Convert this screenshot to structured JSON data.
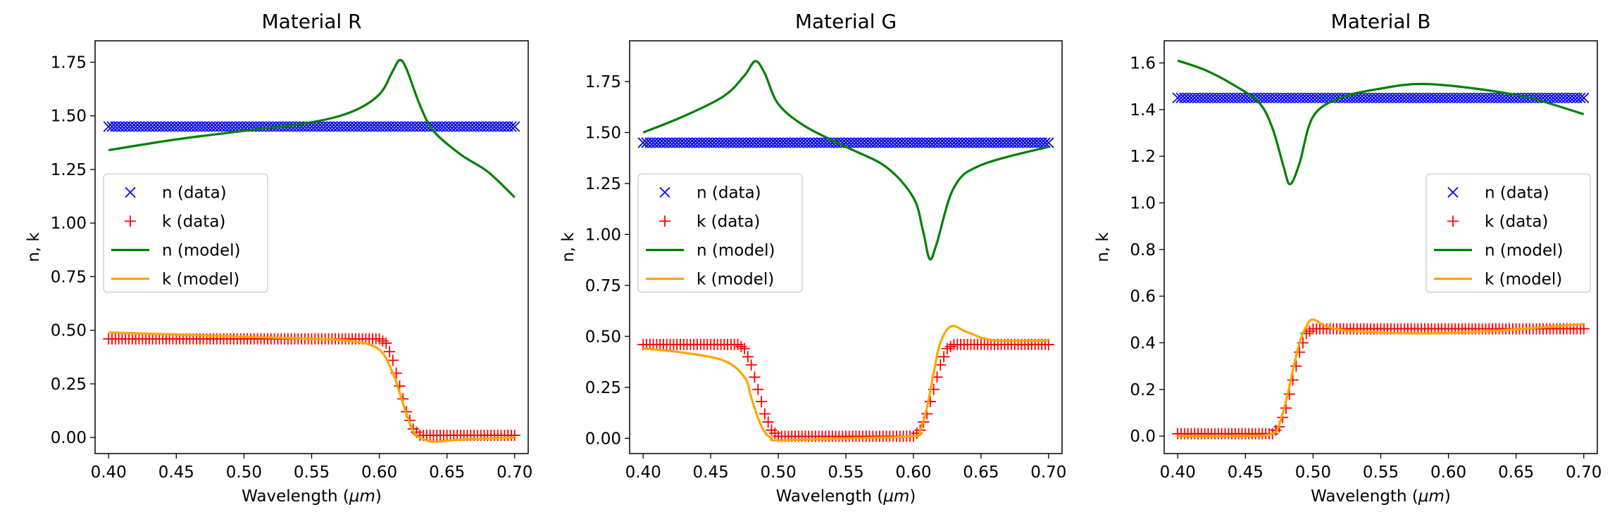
{
  "chart_data": [
    {
      "type": "line",
      "title": "Material R",
      "xlabel": "Wavelength ($\\mu m$)",
      "ylabel": "n, k",
      "xlim": [
        0.39,
        0.71
      ],
      "ylim": [
        -0.075,
        1.85
      ],
      "xticks": [
        0.4,
        0.45,
        0.5,
        0.55,
        0.6,
        0.65,
        0.7
      ],
      "yticks": [
        0.0,
        0.25,
        0.5,
        0.75,
        1.0,
        1.25,
        1.5,
        1.75
      ],
      "legend_position": "center-left",
      "series": [
        {
          "name": "n (data)",
          "style": "x-marker",
          "color": "#0000ff",
          "x": [
            0.4,
            0.7
          ],
          "y": [
            1.45,
            1.45
          ]
        },
        {
          "name": "k (data)",
          "style": "plus-marker",
          "color": "#ff0000",
          "x": [
            0.4,
            0.6,
            0.605,
            0.61,
            0.615,
            0.62,
            0.625,
            0.63,
            0.7
          ],
          "y": [
            0.46,
            0.46,
            0.44,
            0.36,
            0.24,
            0.12,
            0.04,
            0.01,
            0.01
          ]
        },
        {
          "name": "n (model)",
          "style": "line",
          "color": "#008000",
          "x": [
            0.4,
            0.45,
            0.5,
            0.55,
            0.58,
            0.6,
            0.61,
            0.615,
            0.62,
            0.63,
            0.64,
            0.66,
            0.68,
            0.7
          ],
          "y": [
            1.34,
            1.39,
            1.43,
            1.47,
            1.52,
            1.6,
            1.71,
            1.76,
            1.72,
            1.55,
            1.43,
            1.32,
            1.24,
            1.12
          ]
        },
        {
          "name": "k (model)",
          "style": "line",
          "color": "#ffa500",
          "x": [
            0.4,
            0.45,
            0.5,
            0.55,
            0.58,
            0.6,
            0.61,
            0.615,
            0.62,
            0.625,
            0.63,
            0.64,
            0.66,
            0.7
          ],
          "y": [
            0.49,
            0.48,
            0.47,
            0.46,
            0.45,
            0.41,
            0.3,
            0.21,
            0.11,
            0.03,
            0.0,
            -0.02,
            -0.01,
            0.0
          ]
        }
      ]
    },
    {
      "type": "line",
      "title": "Material G",
      "xlabel": "Wavelength ($\\mu m$)",
      "ylabel": "n, k",
      "xlim": [
        0.39,
        0.71
      ],
      "ylim": [
        -0.075,
        1.95
      ],
      "xticks": [
        0.4,
        0.45,
        0.5,
        0.55,
        0.6,
        0.65,
        0.7
      ],
      "yticks": [
        0.0,
        0.25,
        0.5,
        0.75,
        1.0,
        1.25,
        1.5,
        1.75
      ],
      "legend_position": "center-left",
      "series": [
        {
          "name": "n (data)",
          "style": "x-marker",
          "color": "#0000ff",
          "x": [
            0.4,
            0.7
          ],
          "y": [
            1.45,
            1.45
          ]
        },
        {
          "name": "k (data)",
          "style": "plus-marker",
          "color": "#ff0000",
          "x": [
            0.4,
            0.47,
            0.475,
            0.48,
            0.485,
            0.49,
            0.495,
            0.5,
            0.6,
            0.605,
            0.61,
            0.615,
            0.62,
            0.625,
            0.63,
            0.7
          ],
          "y": [
            0.46,
            0.46,
            0.44,
            0.36,
            0.24,
            0.12,
            0.04,
            0.01,
            0.01,
            0.04,
            0.12,
            0.24,
            0.36,
            0.44,
            0.46,
            0.46
          ]
        },
        {
          "name": "n (model)",
          "style": "line",
          "color": "#008000",
          "x": [
            0.4,
            0.43,
            0.46,
            0.475,
            0.483,
            0.49,
            0.5,
            0.52,
            0.55,
            0.58,
            0.6,
            0.607,
            0.612,
            0.617,
            0.63,
            0.65,
            0.7
          ],
          "y": [
            1.5,
            1.58,
            1.68,
            1.78,
            1.85,
            1.79,
            1.64,
            1.53,
            1.43,
            1.33,
            1.18,
            1.02,
            0.88,
            0.95,
            1.23,
            1.34,
            1.43
          ]
        },
        {
          "name": "k (model)",
          "style": "line",
          "color": "#ffa500",
          "x": [
            0.4,
            0.43,
            0.46,
            0.475,
            0.48,
            0.485,
            0.49,
            0.495,
            0.5,
            0.55,
            0.6,
            0.605,
            0.61,
            0.615,
            0.62,
            0.628,
            0.64,
            0.66,
            0.7
          ],
          "y": [
            0.44,
            0.42,
            0.38,
            0.3,
            0.2,
            0.1,
            0.03,
            0.0,
            -0.01,
            0.0,
            0.01,
            0.04,
            0.15,
            0.32,
            0.47,
            0.55,
            0.52,
            0.48,
            0.48
          ]
        }
      ]
    },
    {
      "type": "line",
      "title": "Material B",
      "xlabel": "Wavelength ($\\mu m$)",
      "ylabel": "n, k",
      "xlim": [
        0.39,
        0.71
      ],
      "ylim": [
        -0.075,
        1.695
      ],
      "xticks": [
        0.4,
        0.45,
        0.5,
        0.55,
        0.6,
        0.65,
        0.7
      ],
      "yticks": [
        0.0,
        0.2,
        0.4,
        0.6,
        0.8,
        1.0,
        1.2,
        1.4,
        1.6
      ],
      "legend_position": "center-right",
      "series": [
        {
          "name": "n (data)",
          "style": "x-marker",
          "color": "#0000ff",
          "x": [
            0.4,
            0.7
          ],
          "y": [
            1.45,
            1.45
          ]
        },
        {
          "name": "k (data)",
          "style": "plus-marker",
          "color": "#ff0000",
          "x": [
            0.4,
            0.47,
            0.475,
            0.48,
            0.485,
            0.49,
            0.495,
            0.5,
            0.7
          ],
          "y": [
            0.01,
            0.01,
            0.04,
            0.12,
            0.24,
            0.36,
            0.44,
            0.46,
            0.46
          ]
        },
        {
          "name": "n (model)",
          "style": "line",
          "color": "#008000",
          "x": [
            0.4,
            0.42,
            0.44,
            0.46,
            0.47,
            0.478,
            0.483,
            0.49,
            0.5,
            0.52,
            0.55,
            0.58,
            0.62,
            0.66,
            0.7
          ],
          "y": [
            1.61,
            1.57,
            1.51,
            1.43,
            1.32,
            1.16,
            1.08,
            1.17,
            1.37,
            1.45,
            1.49,
            1.51,
            1.49,
            1.45,
            1.38
          ]
        },
        {
          "name": "k (model)",
          "style": "line",
          "color": "#ffa500",
          "x": [
            0.4,
            0.45,
            0.47,
            0.475,
            0.48,
            0.485,
            0.49,
            0.495,
            0.5,
            0.51,
            0.53,
            0.58,
            0.63,
            0.7
          ],
          "y": [
            0.0,
            0.0,
            0.01,
            0.05,
            0.15,
            0.28,
            0.4,
            0.47,
            0.5,
            0.47,
            0.45,
            0.44,
            0.45,
            0.48
          ]
        }
      ]
    }
  ]
}
